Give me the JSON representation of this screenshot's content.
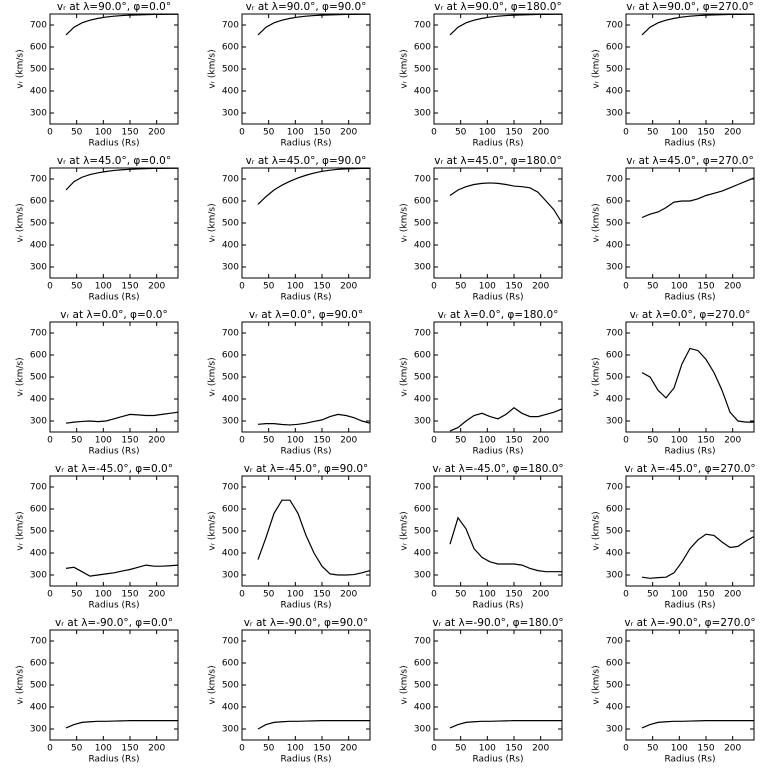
{
  "chart_data": [
    {
      "type": "line",
      "title": "vᵣ at λ=90.0°, φ=0.0°",
      "xlabel": "Radius (Rs)",
      "ylabel": "vᵣ (km/s)",
      "x": [
        30,
        45,
        60,
        75,
        90,
        105,
        120,
        135,
        150,
        165,
        180,
        195,
        210,
        225,
        240
      ],
      "values": [
        655,
        690,
        710,
        722,
        730,
        736,
        740,
        743,
        745,
        746,
        747,
        748,
        748,
        749,
        749
      ],
      "color": "#000000",
      "xlim": [
        0,
        240
      ],
      "ylim": [
        250,
        750
      ],
      "xticks": [
        0,
        50,
        100,
        150,
        200
      ],
      "yticks": [
        300,
        400,
        500,
        600,
        700
      ]
    },
    {
      "type": "line",
      "title": "vᵣ at λ=90.0°, φ=90.0°",
      "xlabel": "Radius (Rs)",
      "ylabel": "vᵣ (km/s)",
      "x": [
        30,
        45,
        60,
        75,
        90,
        105,
        120,
        135,
        150,
        165,
        180,
        195,
        210,
        225,
        240
      ],
      "values": [
        655,
        690,
        710,
        722,
        730,
        736,
        740,
        743,
        745,
        746,
        747,
        748,
        748,
        749,
        749
      ],
      "color": "#000000",
      "xlim": [
        0,
        240
      ],
      "ylim": [
        250,
        750
      ],
      "xticks": [
        0,
        50,
        100,
        150,
        200
      ],
      "yticks": [
        300,
        400,
        500,
        600,
        700
      ]
    },
    {
      "type": "line",
      "title": "vᵣ at λ=90.0°, φ=180.0°",
      "xlabel": "Radius (Rs)",
      "ylabel": "vᵣ (km/s)",
      "x": [
        30,
        45,
        60,
        75,
        90,
        105,
        120,
        135,
        150,
        165,
        180,
        195,
        210,
        225,
        240
      ],
      "values": [
        655,
        690,
        710,
        722,
        730,
        736,
        740,
        743,
        745,
        746,
        747,
        748,
        748,
        749,
        749
      ],
      "color": "#000000",
      "xlim": [
        0,
        240
      ],
      "ylim": [
        250,
        750
      ],
      "xticks": [
        0,
        50,
        100,
        150,
        200
      ],
      "yticks": [
        300,
        400,
        500,
        600,
        700
      ]
    },
    {
      "type": "line",
      "title": "vᵣ at λ=90.0°, φ=270.0°",
      "xlabel": "Radius (Rs)",
      "ylabel": "vᵣ (km/s)",
      "x": [
        30,
        45,
        60,
        75,
        90,
        105,
        120,
        135,
        150,
        165,
        180,
        195,
        210,
        225,
        240
      ],
      "values": [
        655,
        690,
        710,
        722,
        730,
        736,
        740,
        743,
        745,
        746,
        747,
        748,
        748,
        749,
        749
      ],
      "color": "#000000",
      "xlim": [
        0,
        240
      ],
      "ylim": [
        250,
        750
      ],
      "xticks": [
        0,
        50,
        100,
        150,
        200
      ],
      "yticks": [
        300,
        400,
        500,
        600,
        700
      ]
    },
    {
      "type": "line",
      "title": "vᵣ at λ=45.0°, φ=0.0°",
      "xlabel": "Radius (Rs)",
      "ylabel": "vᵣ (km/s)",
      "x": [
        30,
        45,
        60,
        75,
        90,
        105,
        120,
        135,
        150,
        165,
        180,
        195,
        210,
        225,
        240
      ],
      "values": [
        650,
        688,
        708,
        720,
        728,
        734,
        739,
        742,
        744,
        746,
        747,
        748,
        748,
        749,
        749
      ],
      "color": "#000000",
      "xlim": [
        0,
        240
      ],
      "ylim": [
        250,
        750
      ],
      "xticks": [
        0,
        50,
        100,
        150,
        200
      ],
      "yticks": [
        300,
        400,
        500,
        600,
        700
      ]
    },
    {
      "type": "line",
      "title": "vᵣ at λ=45.0°, φ=90.0°",
      "xlabel": "Radius (Rs)",
      "ylabel": "vᵣ (km/s)",
      "x": [
        30,
        45,
        60,
        75,
        90,
        105,
        120,
        135,
        150,
        165,
        180,
        195,
        210,
        225,
        240
      ],
      "values": [
        585,
        620,
        650,
        672,
        690,
        705,
        717,
        727,
        735,
        740,
        744,
        746,
        747,
        748,
        748
      ],
      "color": "#000000",
      "xlim": [
        0,
        240
      ],
      "ylim": [
        250,
        750
      ],
      "xticks": [
        0,
        50,
        100,
        150,
        200
      ],
      "yticks": [
        300,
        400,
        500,
        600,
        700
      ]
    },
    {
      "type": "line",
      "title": "vᵣ at λ=45.0°, φ=180.0°",
      "xlabel": "Radius (Rs)",
      "ylabel": "vᵣ (km/s)",
      "x": [
        30,
        45,
        60,
        75,
        90,
        105,
        120,
        135,
        150,
        165,
        180,
        195,
        210,
        225,
        240
      ],
      "values": [
        625,
        650,
        665,
        675,
        680,
        682,
        680,
        675,
        668,
        665,
        660,
        640,
        600,
        560,
        500
      ],
      "color": "#000000",
      "xlim": [
        0,
        240
      ],
      "ylim": [
        250,
        750
      ],
      "xticks": [
        0,
        50,
        100,
        150,
        200
      ],
      "yticks": [
        300,
        400,
        500,
        600,
        700
      ]
    },
    {
      "type": "line",
      "title": "vᵣ at λ=45.0°, φ=270.0°",
      "xlabel": "Radius (Rs)",
      "ylabel": "vᵣ (km/s)",
      "x": [
        30,
        45,
        60,
        75,
        90,
        105,
        120,
        135,
        150,
        165,
        180,
        195,
        210,
        225,
        240
      ],
      "values": [
        525,
        540,
        550,
        570,
        595,
        600,
        600,
        610,
        625,
        635,
        645,
        660,
        675,
        690,
        705
      ],
      "color": "#000000",
      "xlim": [
        0,
        240
      ],
      "ylim": [
        250,
        750
      ],
      "xticks": [
        0,
        50,
        100,
        150,
        200
      ],
      "yticks": [
        300,
        400,
        500,
        600,
        700
      ]
    },
    {
      "type": "line",
      "title": "vᵣ at λ=0.0°, φ=0.0°",
      "xlabel": "Radius (Rs)",
      "ylabel": "vᵣ (km/s)",
      "x": [
        30,
        45,
        60,
        75,
        90,
        105,
        120,
        135,
        150,
        165,
        180,
        195,
        210,
        225,
        240
      ],
      "values": [
        290,
        295,
        298,
        300,
        297,
        300,
        310,
        320,
        330,
        328,
        325,
        325,
        330,
        335,
        340
      ],
      "color": "#000000",
      "xlim": [
        0,
        240
      ],
      "ylim": [
        250,
        750
      ],
      "xticks": [
        0,
        50,
        100,
        150,
        200
      ],
      "yticks": [
        300,
        400,
        500,
        600,
        700
      ]
    },
    {
      "type": "line",
      "title": "vᵣ at λ=0.0°, φ=90.0°",
      "xlabel": "Radius (Rs)",
      "ylabel": "vᵣ (km/s)",
      "x": [
        30,
        45,
        60,
        75,
        90,
        105,
        120,
        135,
        150,
        165,
        180,
        195,
        210,
        225,
        240
      ],
      "values": [
        285,
        288,
        288,
        284,
        282,
        285,
        290,
        298,
        305,
        320,
        330,
        325,
        315,
        300,
        290
      ],
      "color": "#000000",
      "xlim": [
        0,
        240
      ],
      "ylim": [
        250,
        750
      ],
      "xticks": [
        0,
        50,
        100,
        150,
        200
      ],
      "yticks": [
        300,
        400,
        500,
        600,
        700
      ]
    },
    {
      "type": "line",
      "title": "vᵣ at λ=0.0°, φ=180.0°",
      "xlabel": "Radius (Rs)",
      "ylabel": "vᵣ (km/s)",
      "x": [
        30,
        45,
        60,
        75,
        90,
        105,
        120,
        135,
        150,
        165,
        180,
        195,
        210,
        225,
        240
      ],
      "values": [
        255,
        270,
        300,
        325,
        335,
        320,
        310,
        330,
        360,
        335,
        320,
        320,
        330,
        340,
        355
      ],
      "color": "#000000",
      "xlim": [
        0,
        240
      ],
      "ylim": [
        250,
        750
      ],
      "xticks": [
        0,
        50,
        100,
        150,
        200
      ],
      "yticks": [
        300,
        400,
        500,
        600,
        700
      ]
    },
    {
      "type": "line",
      "title": "vᵣ at λ=0.0°, φ=270.0°",
      "xlabel": "Radius (Rs)",
      "ylabel": "vᵣ (km/s)",
      "x": [
        30,
        45,
        60,
        75,
        90,
        105,
        120,
        135,
        150,
        165,
        180,
        195,
        210,
        225,
        240
      ],
      "values": [
        520,
        500,
        440,
        405,
        450,
        560,
        630,
        620,
        580,
        520,
        440,
        340,
        300,
        295,
        295
      ],
      "color": "#000000",
      "xlim": [
        0,
        240
      ],
      "ylim": [
        250,
        750
      ],
      "xticks": [
        0,
        50,
        100,
        150,
        200
      ],
      "yticks": [
        300,
        400,
        500,
        600,
        700
      ]
    },
    {
      "type": "line",
      "title": "vᵣ at λ=-45.0°, φ=0.0°",
      "xlabel": "Radius (Rs)",
      "ylabel": "vᵣ (km/s)",
      "x": [
        30,
        45,
        60,
        75,
        90,
        105,
        120,
        135,
        150,
        165,
        180,
        195,
        210,
        225,
        240
      ],
      "values": [
        330,
        335,
        315,
        295,
        300,
        305,
        310,
        318,
        325,
        335,
        345,
        340,
        340,
        342,
        345
      ],
      "color": "#000000",
      "xlim": [
        0,
        240
      ],
      "ylim": [
        250,
        750
      ],
      "xticks": [
        0,
        50,
        100,
        150,
        200
      ],
      "yticks": [
        300,
        400,
        500,
        600,
        700
      ]
    },
    {
      "type": "line",
      "title": "vᵣ at λ=-45.0°, φ=90.0°",
      "xlabel": "Radius (Rs)",
      "ylabel": "vᵣ (km/s)",
      "x": [
        30,
        45,
        60,
        75,
        90,
        105,
        120,
        135,
        150,
        165,
        180,
        195,
        210,
        225,
        240
      ],
      "values": [
        370,
        470,
        580,
        640,
        640,
        580,
        480,
        400,
        340,
        305,
        300,
        300,
        302,
        310,
        320
      ],
      "color": "#000000",
      "xlim": [
        0,
        240
      ],
      "ylim": [
        250,
        750
      ],
      "xticks": [
        0,
        50,
        100,
        150,
        200
      ],
      "yticks": [
        300,
        400,
        500,
        600,
        700
      ]
    },
    {
      "type": "line",
      "title": "vᵣ at λ=-45.0°, φ=180.0°",
      "xlabel": "Radius (Rs)",
      "ylabel": "vᵣ (km/s)",
      "x": [
        30,
        45,
        60,
        75,
        90,
        105,
        120,
        135,
        150,
        165,
        180,
        195,
        210,
        225,
        240
      ],
      "values": [
        440,
        560,
        510,
        420,
        380,
        360,
        350,
        350,
        350,
        345,
        330,
        320,
        315,
        315,
        315
      ],
      "color": "#000000",
      "xlim": [
        0,
        240
      ],
      "ylim": [
        250,
        750
      ],
      "xticks": [
        0,
        50,
        100,
        150,
        200
      ],
      "yticks": [
        300,
        400,
        500,
        600,
        700
      ]
    },
    {
      "type": "line",
      "title": "vᵣ at λ=-45.0°, φ=270.0°",
      "xlabel": "Radius (Rs)",
      "ylabel": "vᵣ (km/s)",
      "x": [
        30,
        45,
        60,
        75,
        90,
        105,
        120,
        135,
        150,
        165,
        180,
        195,
        210,
        225,
        240
      ],
      "values": [
        290,
        285,
        288,
        290,
        310,
        360,
        420,
        460,
        485,
        480,
        450,
        425,
        430,
        455,
        475
      ],
      "color": "#000000",
      "xlim": [
        0,
        240
      ],
      "ylim": [
        250,
        750
      ],
      "xticks": [
        0,
        50,
        100,
        150,
        200
      ],
      "yticks": [
        300,
        400,
        500,
        600,
        700
      ]
    },
    {
      "type": "line",
      "title": "vᵣ at λ=-90.0°, φ=0.0°",
      "xlabel": "Radius (Rs)",
      "ylabel": "vᵣ (km/s)",
      "x": [
        30,
        45,
        60,
        75,
        90,
        105,
        120,
        135,
        150,
        165,
        180,
        195,
        210,
        225,
        240
      ],
      "values": [
        305,
        320,
        330,
        333,
        335,
        335,
        336,
        337,
        338,
        338,
        338,
        338,
        338,
        338,
        338
      ],
      "color": "#000000",
      "xlim": [
        0,
        240
      ],
      "ylim": [
        250,
        750
      ],
      "xticks": [
        0,
        50,
        100,
        150,
        200
      ],
      "yticks": [
        300,
        400,
        500,
        600,
        700
      ]
    },
    {
      "type": "line",
      "title": "vᵣ at λ=-90.0°, φ=90.0°",
      "xlabel": "Radius (Rs)",
      "ylabel": "vᵣ (km/s)",
      "x": [
        30,
        45,
        60,
        75,
        90,
        105,
        120,
        135,
        150,
        165,
        180,
        195,
        210,
        225,
        240
      ],
      "values": [
        300,
        320,
        330,
        333,
        335,
        335,
        336,
        337,
        338,
        338,
        338,
        338,
        338,
        338,
        338
      ],
      "color": "#000000",
      "xlim": [
        0,
        240
      ],
      "ylim": [
        250,
        750
      ],
      "xticks": [
        0,
        50,
        100,
        150,
        200
      ],
      "yticks": [
        300,
        400,
        500,
        600,
        700
      ]
    },
    {
      "type": "line",
      "title": "vᵣ at λ=-90.0°, φ=180.0°",
      "xlabel": "Radius (Rs)",
      "ylabel": "vᵣ (km/s)",
      "x": [
        30,
        45,
        60,
        75,
        90,
        105,
        120,
        135,
        150,
        165,
        180,
        195,
        210,
        225,
        240
      ],
      "values": [
        305,
        320,
        330,
        333,
        335,
        335,
        336,
        337,
        338,
        338,
        338,
        338,
        338,
        338,
        338
      ],
      "color": "#000000",
      "xlim": [
        0,
        240
      ],
      "ylim": [
        250,
        750
      ],
      "xticks": [
        0,
        50,
        100,
        150,
        200
      ],
      "yticks": [
        300,
        400,
        500,
        600,
        700
      ]
    },
    {
      "type": "line",
      "title": "vᵣ at λ=-90.0°, φ=270.0°",
      "xlabel": "Radius (Rs)",
      "ylabel": "vᵣ (km/s)",
      "x": [
        30,
        45,
        60,
        75,
        90,
        105,
        120,
        135,
        150,
        165,
        180,
        195,
        210,
        225,
        240
      ],
      "values": [
        305,
        320,
        330,
        333,
        335,
        335,
        336,
        337,
        338,
        338,
        338,
        338,
        338,
        338,
        338
      ],
      "color": "#000000",
      "xlim": [
        0,
        240
      ],
      "ylim": [
        250,
        750
      ],
      "xticks": [
        0,
        50,
        100,
        150,
        200
      ],
      "yticks": [
        300,
        400,
        500,
        600,
        700
      ]
    }
  ]
}
